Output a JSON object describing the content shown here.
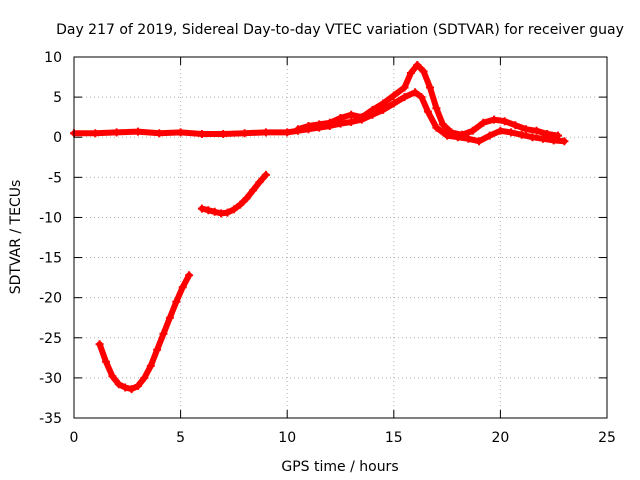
{
  "chart_data": {
    "type": "line",
    "title": "Day 217 of 2019, Sidereal Day-to-day VTEC variation (SDTVAR) for receiver guay",
    "xlabel": "GPS time / hours",
    "ylabel": "SDTVAR / TECUs",
    "xlim": [
      0,
      25
    ],
    "ylim": [
      -35,
      10
    ],
    "grid": true,
    "x_ticks": [
      0,
      5,
      10,
      15,
      20,
      25
    ],
    "x_tick_labels": [
      "0",
      "5",
      "10",
      "15",
      "20",
      "25"
    ],
    "y_ticks": [
      -35,
      -30,
      -25,
      -20,
      -15,
      -10,
      -5,
      0,
      5,
      10
    ],
    "y_tick_labels": [
      "-35",
      "-30",
      "-25",
      "-20",
      "-15",
      "-10",
      "-5",
      "0",
      "5",
      "10"
    ],
    "series_color": "#ff0000",
    "series": [
      {
        "name": "main-trace-low",
        "x": [
          0.0,
          1,
          2,
          3,
          4,
          5,
          6,
          7,
          8,
          9,
          10,
          10.5,
          11,
          11.5,
          12,
          12.5,
          13,
          13.5,
          14,
          14.5,
          15,
          15.5,
          16,
          16.3,
          16.6,
          17,
          17.5,
          18,
          18.5,
          19,
          19.5,
          20,
          20.5,
          21,
          21.5,
          22,
          22.5,
          23
        ],
        "y": [
          0.5,
          0.5,
          0.6,
          0.7,
          0.5,
          0.6,
          0.4,
          0.4,
          0.5,
          0.6,
          0.6,
          0.8,
          1.0,
          1.2,
          1.4,
          1.7,
          1.9,
          2.2,
          2.8,
          3.4,
          4.2,
          5.0,
          5.6,
          5.0,
          3.2,
          1.2,
          0.2,
          0.0,
          -0.2,
          -0.5,
          0.2,
          0.8,
          0.6,
          0.3,
          0.0,
          -0.2,
          -0.4,
          -0.5
        ]
      },
      {
        "name": "main-trace-high",
        "x": [
          10.5,
          11,
          11.5,
          12,
          12.5,
          13,
          13.5,
          14,
          14.5,
          15,
          15.5,
          15.8,
          16.1,
          16.4,
          16.7,
          17,
          17.3,
          17.7,
          18.2,
          18.7,
          19.2,
          19.7,
          20.2,
          20.7,
          21.2,
          21.7,
          22.2,
          22.7
        ],
        "y": [
          1.0,
          1.4,
          1.6,
          1.8,
          2.4,
          2.8,
          2.5,
          3.4,
          4.2,
          5.2,
          6.2,
          8.0,
          9.0,
          8.2,
          6.2,
          3.6,
          1.6,
          0.6,
          0.3,
          0.8,
          1.8,
          2.2,
          2.0,
          1.5,
          1.0,
          0.8,
          0.4,
          0.2
        ]
      },
      {
        "name": "dip-segment-1",
        "x": [
          1.2,
          1.5,
          1.8,
          2.1,
          2.4,
          2.7,
          3.0,
          3.3,
          3.6,
          3.9,
          4.2,
          4.5,
          4.8,
          5.1,
          5.4
        ],
        "y": [
          -25.8,
          -28.0,
          -29.8,
          -30.8,
          -31.2,
          -31.4,
          -31.0,
          -30.0,
          -28.5,
          -26.5,
          -24.5,
          -22.5,
          -20.5,
          -18.7,
          -17.2
        ]
      },
      {
        "name": "dip-segment-2",
        "x": [
          6.0,
          6.3,
          6.6,
          6.9,
          7.2,
          7.5,
          7.8,
          8.1,
          8.4,
          8.7,
          9.0
        ],
        "y": [
          -8.9,
          -9.1,
          -9.3,
          -9.5,
          -9.4,
          -9.0,
          -8.4,
          -7.6,
          -6.6,
          -5.6,
          -4.7
        ]
      }
    ]
  }
}
